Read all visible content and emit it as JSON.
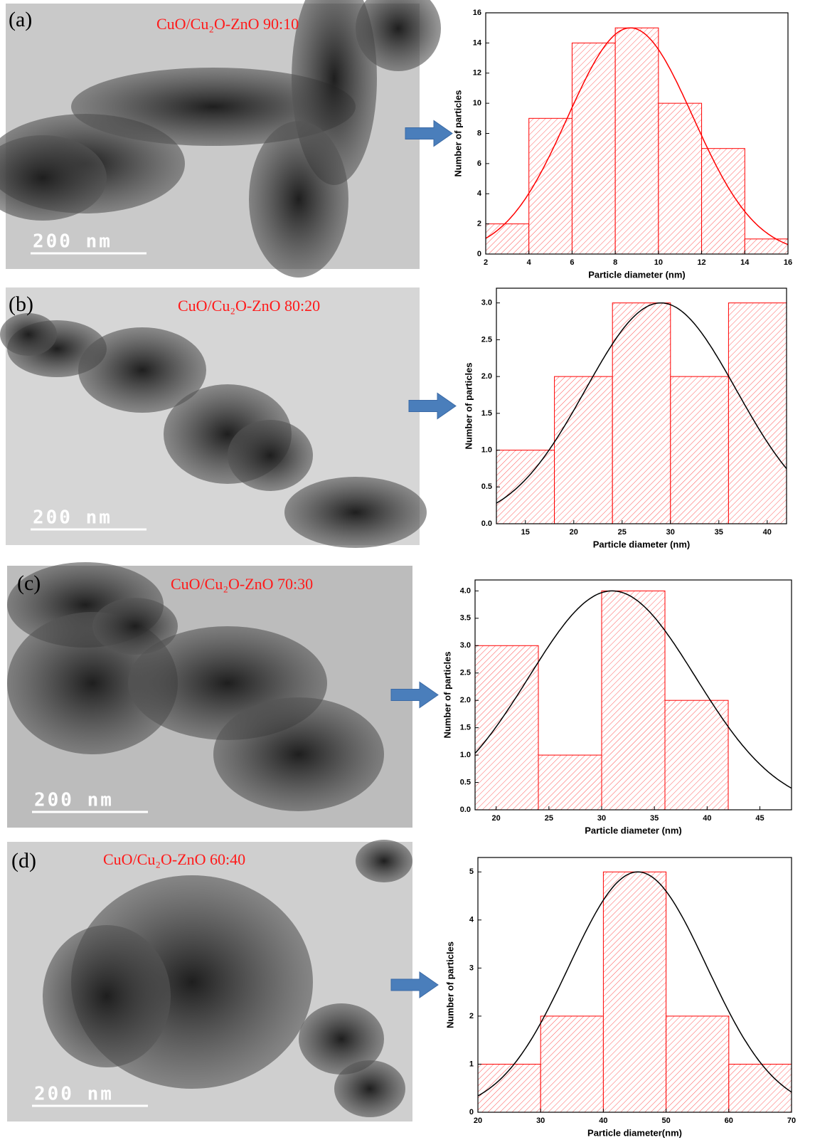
{
  "panels": [
    {
      "label": "(a)",
      "caption": "CuO/Cu₂O-ZnO 90:10",
      "scale_bar": "200 nm"
    },
    {
      "label": "(b)",
      "caption": "CuO/Cu₂O-ZnO 80:20",
      "scale_bar": "200 nm"
    },
    {
      "label": "(c)",
      "caption": "CuO/Cu₂O-ZnO 70:30",
      "scale_bar": "200 nm"
    },
    {
      "label": "(d)",
      "caption": "CuO/Cu₂O-ZnO 60:40",
      "scale_bar": "200 nm"
    }
  ],
  "chart_data": [
    {
      "type": "histogram",
      "x_label": "Particle diameter (nm)",
      "y_label": "Number of particles",
      "bins": [
        2,
        4,
        6,
        8,
        10,
        12,
        14,
        16
      ],
      "values": [
        2,
        9,
        14,
        15,
        10,
        7,
        1
      ],
      "color": "#ff0000",
      "xlim": [
        2,
        16
      ],
      "xticks": [
        2,
        4,
        6,
        8,
        10,
        12,
        14,
        16
      ],
      "ylim": [
        0,
        16
      ],
      "yticks": [
        0,
        2,
        4,
        6,
        8,
        10,
        12,
        14,
        16
      ],
      "fit": {
        "mean": 8.7,
        "sd": 2.9,
        "peak": 15,
        "color": "#ff0000"
      }
    },
    {
      "type": "histogram",
      "x_label": "Particle diameter (nm)",
      "y_label": "Number of particles",
      "bins": [
        12,
        18,
        24,
        30,
        36,
        42
      ],
      "values": [
        1,
        2,
        3,
        2,
        3
      ],
      "color": "#ff0000",
      "xlim": [
        12,
        42
      ],
      "xticks": [
        15,
        20,
        25,
        30,
        35,
        40
      ],
      "ylim": [
        0,
        3.2
      ],
      "yticks": [
        {
          "value": 0,
          "label": "0.0"
        },
        0.5,
        {
          "value": 1,
          "label": "1.0"
        },
        1.5,
        {
          "value": 2,
          "label": "2.0"
        },
        2.5,
        {
          "value": 3,
          "label": "3.0"
        }
      ],
      "fit": {
        "mean": 29,
        "sd": 7.8,
        "peak": 3,
        "color": "#000000"
      }
    },
    {
      "type": "histogram",
      "x_label": "Particle diameter (nm)",
      "y_label": "Number of particles",
      "bins": [
        18,
        24,
        30,
        36,
        42
      ],
      "values": [
        3,
        1,
        4,
        2
      ],
      "color": "#ff0000",
      "xlim": [
        18,
        48
      ],
      "xticks": [
        20,
        25,
        30,
        35,
        40,
        45
      ],
      "ylim": [
        0,
        4.2
      ],
      "yticks": [
        {
          "value": 0,
          "label": "0.0"
        },
        0.5,
        {
          "value": 1,
          "label": "1.0"
        },
        1.5,
        {
          "value": 2,
          "label": "2.0"
        },
        2.5,
        {
          "value": 3,
          "label": "3.0"
        },
        3.5,
        {
          "value": 4,
          "label": "4.0"
        }
      ],
      "fit": {
        "mean": 31,
        "sd": 7.9,
        "peak": 4,
        "color": "#000000"
      }
    },
    {
      "type": "histogram",
      "x_label": "Particle diameter(nm)",
      "y_label": "Number of particles",
      "bins": [
        20,
        30,
        40,
        50,
        60,
        70
      ],
      "values": [
        1,
        2,
        5,
        2,
        1
      ],
      "color": "#ff0000",
      "xlim": [
        20,
        70
      ],
      "xticks": [
        20,
        30,
        40,
        50,
        60,
        70
      ],
      "ylim": [
        0,
        5.3
      ],
      "yticks": [
        0,
        1,
        2,
        3,
        4,
        5
      ],
      "fit": {
        "mean": 45.5,
        "sd": 11,
        "peak": 5,
        "color": "#000000"
      }
    }
  ]
}
